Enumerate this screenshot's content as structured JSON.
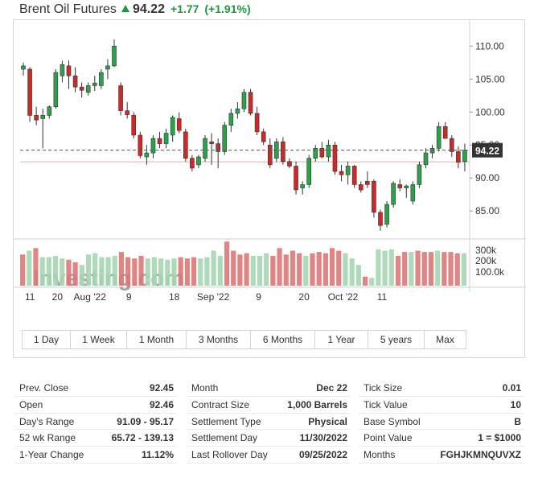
{
  "header": {
    "title": "Brent Oil Futures",
    "price": "94.22",
    "change": "+1.77",
    "change_pct": "(+1.91%)"
  },
  "chart_data": {
    "type": "candlestick",
    "y_ticks": [
      "110.00",
      "105.00",
      "100.00",
      "95.00",
      "90.00",
      "85.00"
    ],
    "ylim": [
      81,
      111.5
    ],
    "last_price_label": "94.22",
    "last_price_value": 94.22,
    "reference_line_value": 92.45,
    "volume_ticks": [
      "300k",
      "200k",
      "100.0k"
    ],
    "volume_ylim": [
      0,
      360000
    ],
    "x_tick_labels": [
      {
        "label": "11",
        "i": 0
      },
      {
        "label": "20",
        "i": 5
      },
      {
        "label": "Aug '22",
        "i": 10
      },
      {
        "label": "9",
        "i": 16
      },
      {
        "label": "18",
        "i": 23
      },
      {
        "label": "Sep '22",
        "i": 29
      },
      {
        "label": "9",
        "i": 36
      },
      {
        "label": "20",
        "i": 43
      },
      {
        "label": "Oct '22",
        "i": 49
      },
      {
        "label": "11",
        "i": 55
      }
    ],
    "candles": [
      {
        "o": 106.5,
        "h": 107.5,
        "l": 105.5,
        "c": 107.0
      },
      {
        "o": 106.5,
        "h": 106.8,
        "l": 98.5,
        "c": 99.5
      },
      {
        "o": 99.5,
        "h": 100.8,
        "l": 98.0,
        "c": 98.8
      },
      {
        "o": 99.0,
        "h": 100.5,
        "l": 94.5,
        "c": 99.5
      },
      {
        "o": 99.5,
        "h": 101.0,
        "l": 99.0,
        "c": 100.8
      },
      {
        "o": 100.8,
        "h": 106.5,
        "l": 100.5,
        "c": 106.0
      },
      {
        "o": 105.5,
        "h": 107.8,
        "l": 104.5,
        "c": 107.2
      },
      {
        "o": 107.0,
        "h": 107.8,
        "l": 103.5,
        "c": 105.5
      },
      {
        "o": 105.5,
        "h": 106.8,
        "l": 103.0,
        "c": 103.8
      },
      {
        "o": 103.8,
        "h": 104.5,
        "l": 102.2,
        "c": 103.3
      },
      {
        "o": 103.0,
        "h": 104.5,
        "l": 102.5,
        "c": 104.0
      },
      {
        "o": 104.0,
        "h": 105.5,
        "l": 103.2,
        "c": 104.4
      },
      {
        "o": 104.0,
        "h": 106.5,
        "l": 103.5,
        "c": 106.0
      },
      {
        "o": 106.5,
        "h": 108.0,
        "l": 105.0,
        "c": 107.0
      },
      {
        "o": 107.0,
        "h": 111.0,
        "l": 106.8,
        "c": 110.0
      },
      {
        "o": 104.0,
        "h": 104.5,
        "l": 99.5,
        "c": 100.2
      },
      {
        "o": 100.2,
        "h": 101.5,
        "l": 99.0,
        "c": 99.6
      },
      {
        "o": 99.5,
        "h": 100.0,
        "l": 96.0,
        "c": 96.5
      },
      {
        "o": 96.5,
        "h": 97.0,
        "l": 93.0,
        "c": 93.4
      },
      {
        "o": 93.2,
        "h": 95.0,
        "l": 92.0,
        "c": 93.8
      },
      {
        "o": 93.8,
        "h": 96.5,
        "l": 93.0,
        "c": 96.0
      },
      {
        "o": 96.0,
        "h": 97.0,
        "l": 94.5,
        "c": 95.2
      },
      {
        "o": 95.2,
        "h": 97.5,
        "l": 94.5,
        "c": 96.8
      },
      {
        "o": 96.5,
        "h": 99.5,
        "l": 95.5,
        "c": 99.2
      },
      {
        "o": 99.0,
        "h": 100.0,
        "l": 96.8,
        "c": 97.2
      },
      {
        "o": 97.0,
        "h": 97.5,
        "l": 92.5,
        "c": 93.0
      },
      {
        "o": 93.0,
        "h": 93.5,
        "l": 91.0,
        "c": 91.5
      },
      {
        "o": 92.0,
        "h": 93.5,
        "l": 91.5,
        "c": 93.2
      },
      {
        "o": 93.0,
        "h": 96.5,
        "l": 92.5,
        "c": 96.0
      },
      {
        "o": 95.5,
        "h": 96.8,
        "l": 92.0,
        "c": 95.2
      },
      {
        "o": 95.2,
        "h": 96.0,
        "l": 91.5,
        "c": 94.0
      },
      {
        "o": 94.0,
        "h": 98.5,
        "l": 93.5,
        "c": 98.0
      },
      {
        "o": 98.0,
        "h": 100.5,
        "l": 97.0,
        "c": 99.8
      },
      {
        "o": 99.8,
        "h": 101.5,
        "l": 99.0,
        "c": 100.5
      },
      {
        "o": 100.5,
        "h": 103.5,
        "l": 100.0,
        "c": 103.0
      },
      {
        "o": 103.0,
        "h": 103.5,
        "l": 99.5,
        "c": 99.8
      },
      {
        "o": 99.8,
        "h": 100.8,
        "l": 96.5,
        "c": 97.0
      },
      {
        "o": 97.0,
        "h": 97.5,
        "l": 95.0,
        "c": 95.5
      }
    ],
    "candles_b": [
      {
        "o": 95.0,
        "h": 96.0,
        "l": 91.5,
        "c": 92.0
      },
      {
        "o": 93.0,
        "h": 96.0,
        "l": 92.5,
        "c": 95.5
      },
      {
        "o": 95.5,
        "h": 96.2,
        "l": 92.0,
        "c": 92.5
      },
      {
        "o": 92.5,
        "h": 93.0,
        "l": 91.5,
        "c": 91.8
      },
      {
        "o": 91.8,
        "h": 92.5,
        "l": 87.5,
        "c": 88.2
      },
      {
        "o": 88.5,
        "h": 89.5,
        "l": 87.5,
        "c": 89.0
      },
      {
        "o": 89.0,
        "h": 93.5,
        "l": 88.5,
        "c": 93.0
      },
      {
        "o": 93.0,
        "h": 95.0,
        "l": 92.5,
        "c": 94.5
      },
      {
        "o": 94.5,
        "h": 95.5,
        "l": 93.0,
        "c": 93.2
      },
      {
        "o": 93.2,
        "h": 95.8,
        "l": 92.5,
        "c": 95.0
      },
      {
        "o": 95.0,
        "h": 95.5,
        "l": 90.5,
        "c": 91.0
      },
      {
        "o": 91.0,
        "h": 92.0,
        "l": 89.5,
        "c": 90.5
      },
      {
        "o": 90.5,
        "h": 92.5,
        "l": 89.0,
        "c": 91.8
      },
      {
        "o": 91.8,
        "h": 92.0,
        "l": 88.5,
        "c": 89.0
      },
      {
        "o": 89.0,
        "h": 89.5,
        "l": 87.8,
        "c": 88.2
      },
      {
        "o": 89.5,
        "h": 91.0,
        "l": 88.5,
        "c": 89.0
      },
      {
        "o": 89.5,
        "h": 89.8,
        "l": 84.0,
        "c": 84.8
      },
      {
        "o": 84.8,
        "h": 85.2,
        "l": 82.0,
        "c": 82.8
      },
      {
        "o": 83.0,
        "h": 86.5,
        "l": 82.5,
        "c": 86.0
      },
      {
        "o": 86.0,
        "h": 89.5,
        "l": 85.5,
        "c": 89.2
      },
      {
        "o": 89.0,
        "h": 89.8,
        "l": 88.0,
        "c": 88.5
      },
      {
        "o": 88.5,
        "h": 89.0,
        "l": 87.0,
        "c": 88.8
      },
      {
        "o": 86.5,
        "h": 89.5,
        "l": 86.0,
        "c": 89.0
      },
      {
        "o": 89.0,
        "h": 92.5,
        "l": 88.5,
        "c": 92.0
      },
      {
        "o": 92.0,
        "h": 94.5,
        "l": 91.5,
        "c": 93.8
      },
      {
        "o": 93.8,
        "h": 95.0,
        "l": 93.0,
        "c": 94.5
      },
      {
        "o": 94.5,
        "h": 98.5,
        "l": 94.0,
        "c": 97.8
      },
      {
        "o": 97.8,
        "h": 98.5,
        "l": 96.5,
        "c": 96.0
      },
      {
        "o": 96.0,
        "h": 96.5,
        "l": 93.2,
        "c": 94.0
      },
      {
        "o": 94.0,
        "h": 94.8,
        "l": 91.5,
        "c": 92.4
      },
      {
        "o": 92.5,
        "h": 95.2,
        "l": 91.0,
        "c": 94.22
      }
    ],
    "volume": [
      {
        "v": 240000,
        "up": false
      },
      {
        "v": 270000,
        "up": true
      },
      {
        "v": 290000,
        "up": false
      },
      {
        "v": 220000,
        "up": true
      },
      {
        "v": 220000,
        "up": true
      },
      {
        "v": 230000,
        "up": true
      },
      {
        "v": 210000,
        "up": true
      },
      {
        "v": 200000,
        "up": false
      },
      {
        "v": 180000,
        "up": false
      },
      {
        "v": 160000,
        "up": true
      },
      {
        "v": 240000,
        "up": true
      },
      {
        "v": 250000,
        "up": true
      },
      {
        "v": 220000,
        "up": true
      },
      {
        "v": 220000,
        "up": true
      },
      {
        "v": 230000,
        "up": true
      },
      {
        "v": 260000,
        "up": false
      },
      {
        "v": 220000,
        "up": false
      },
      {
        "v": 210000,
        "up": false
      },
      {
        "v": 230000,
        "up": false
      },
      {
        "v": 210000,
        "up": true
      },
      {
        "v": 220000,
        "up": true
      },
      {
        "v": 210000,
        "up": true
      },
      {
        "v": 200000,
        "up": true
      },
      {
        "v": 210000,
        "up": true
      },
      {
        "v": 220000,
        "up": false
      },
      {
        "v": 210000,
        "up": false
      },
      {
        "v": 220000,
        "up": false
      },
      {
        "v": 210000,
        "up": true
      },
      {
        "v": 220000,
        "up": true
      },
      {
        "v": 270000,
        "up": true
      },
      {
        "v": 230000,
        "up": true
      },
      {
        "v": 340000,
        "up": false
      },
      {
        "v": 270000,
        "up": false
      },
      {
        "v": 240000,
        "up": false
      },
      {
        "v": 250000,
        "up": false
      },
      {
        "v": 230000,
        "up": true
      },
      {
        "v": 230000,
        "up": true
      },
      {
        "v": 250000,
        "up": true
      },
      {
        "v": 230000,
        "up": false
      },
      {
        "v": 290000,
        "up": false
      },
      {
        "v": 240000,
        "up": false
      },
      {
        "v": 270000,
        "up": false
      },
      {
        "v": 250000,
        "up": false
      },
      {
        "v": 230000,
        "up": true
      },
      {
        "v": 250000,
        "up": false
      },
      {
        "v": 260000,
        "up": false
      },
      {
        "v": 250000,
        "up": false
      },
      {
        "v": 290000,
        "up": false
      },
      {
        "v": 270000,
        "up": false
      },
      {
        "v": 250000,
        "up": true
      },
      {
        "v": 210000,
        "up": true
      },
      {
        "v": 160000,
        "up": true
      },
      {
        "v": 70000,
        "up": false
      },
      {
        "v": 60000,
        "up": true
      },
      {
        "v": 280000,
        "up": true
      },
      {
        "v": 270000,
        "up": true
      },
      {
        "v": 280000,
        "up": true
      },
      {
        "v": 230000,
        "up": false
      },
      {
        "v": 260000,
        "up": false
      },
      {
        "v": 260000,
        "up": true
      },
      {
        "v": 270000,
        "up": false
      },
      {
        "v": 260000,
        "up": false
      },
      {
        "v": 260000,
        "up": false
      },
      {
        "v": 270000,
        "up": true
      },
      {
        "v": 260000,
        "up": false
      },
      {
        "v": 260000,
        "up": false
      },
      {
        "v": 250000,
        "up": false
      },
      {
        "v": 250000,
        "up": true
      }
    ],
    "watermark": "Investing.com"
  },
  "periods": [
    "1 Day",
    "1 Week",
    "1 Month",
    "3 Months",
    "6 Months",
    "1 Year",
    "5 years",
    "Max"
  ],
  "stats": {
    "col1": [
      {
        "label": "Prev. Close",
        "value": "92.45"
      },
      {
        "label": "Open",
        "value": "92.46"
      },
      {
        "label": "Day's Range",
        "value": "91.09 - 95.17"
      },
      {
        "label": "52 wk Range",
        "value": "65.72 - 139.13"
      },
      {
        "label": "1-Year Change",
        "value": "11.12%"
      }
    ],
    "col2": [
      {
        "label": "Month",
        "value": "Dec 22"
      },
      {
        "label": "Contract Size",
        "value": "1,000 Barrels"
      },
      {
        "label": "Settlement Type",
        "value": "Physical"
      },
      {
        "label": "Settlement Day",
        "value": "11/30/2022"
      },
      {
        "label": "Last Rollover Day",
        "value": "09/25/2022"
      }
    ],
    "col3": [
      {
        "label": "Tick Size",
        "value": "0.01"
      },
      {
        "label": "Tick Value",
        "value": "10"
      },
      {
        "label": "Base Symbol",
        "value": "B"
      },
      {
        "label": "Point Value",
        "value": "1 = $1000"
      },
      {
        "label": "Months",
        "value": "FGHJKMNQUVXZ"
      }
    ]
  },
  "colors": {
    "up": "#2aa24a",
    "down": "#cc2a29",
    "up_volume": "#a6d6b3",
    "down_volume": "#dd7777",
    "price_box": "#333333"
  }
}
